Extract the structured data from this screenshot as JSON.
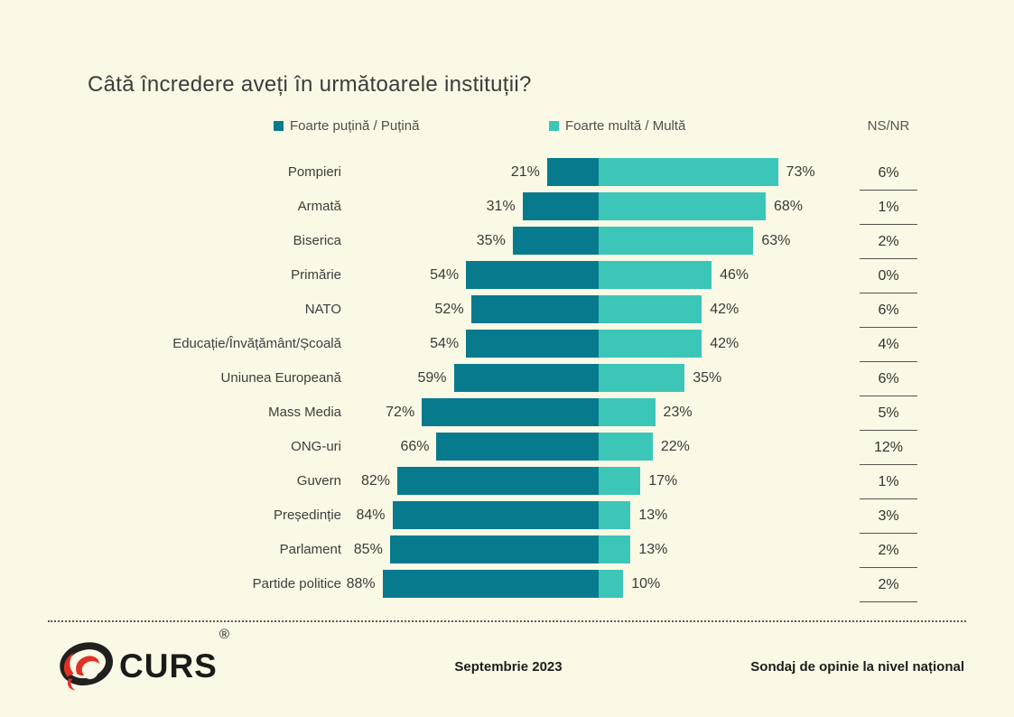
{
  "title": "Câtă încredere aveți în următoarele instituții?",
  "legend": {
    "left_label": "Foarte puțină / Puțină",
    "right_label": "Foarte multă / Multă",
    "ns_label": "NS/NR"
  },
  "colors": {
    "background": "#FAF9E6",
    "bar_dark": "#087A8E",
    "bar_light": "#3CC6B8",
    "text": "#3E3E3C"
  },
  "chart_data": {
    "type": "bar",
    "subtype": "diverging-stacked-horizontal",
    "title": "Câtă încredere aveți în următoarele instituții?",
    "value_suffix": "%",
    "legend_position": "top",
    "categories": [
      "Pompieri",
      "Armată",
      "Biserica",
      "Primărie",
      "NATO",
      "Educație/Învățământ/Școală",
      "Uniunea Europeană",
      "Mass Media",
      "ONG-uri",
      "Guvern",
      "Președinție",
      "Parlament",
      "Partide politice"
    ],
    "series": [
      {
        "name": "Foarte puțină / Puțină",
        "color": "#087A8E",
        "direction": "left",
        "values": [
          21,
          31,
          35,
          54,
          52,
          54,
          59,
          72,
          66,
          82,
          84,
          85,
          88
        ]
      },
      {
        "name": "Foarte multă / Multă",
        "color": "#3CC6B8",
        "direction": "right",
        "values": [
          73,
          68,
          63,
          46,
          42,
          42,
          35,
          23,
          22,
          17,
          13,
          13,
          10
        ]
      }
    ],
    "ns_nr": {
      "label": "NS/NR",
      "values": [
        6,
        1,
        2,
        0,
        6,
        4,
        6,
        5,
        12,
        1,
        3,
        2,
        2
      ]
    }
  },
  "footer": {
    "logo_text": "CURS",
    "registered": "®",
    "date": "Septembrie 2023",
    "note": "Sondaj de opinie la nivel național"
  }
}
